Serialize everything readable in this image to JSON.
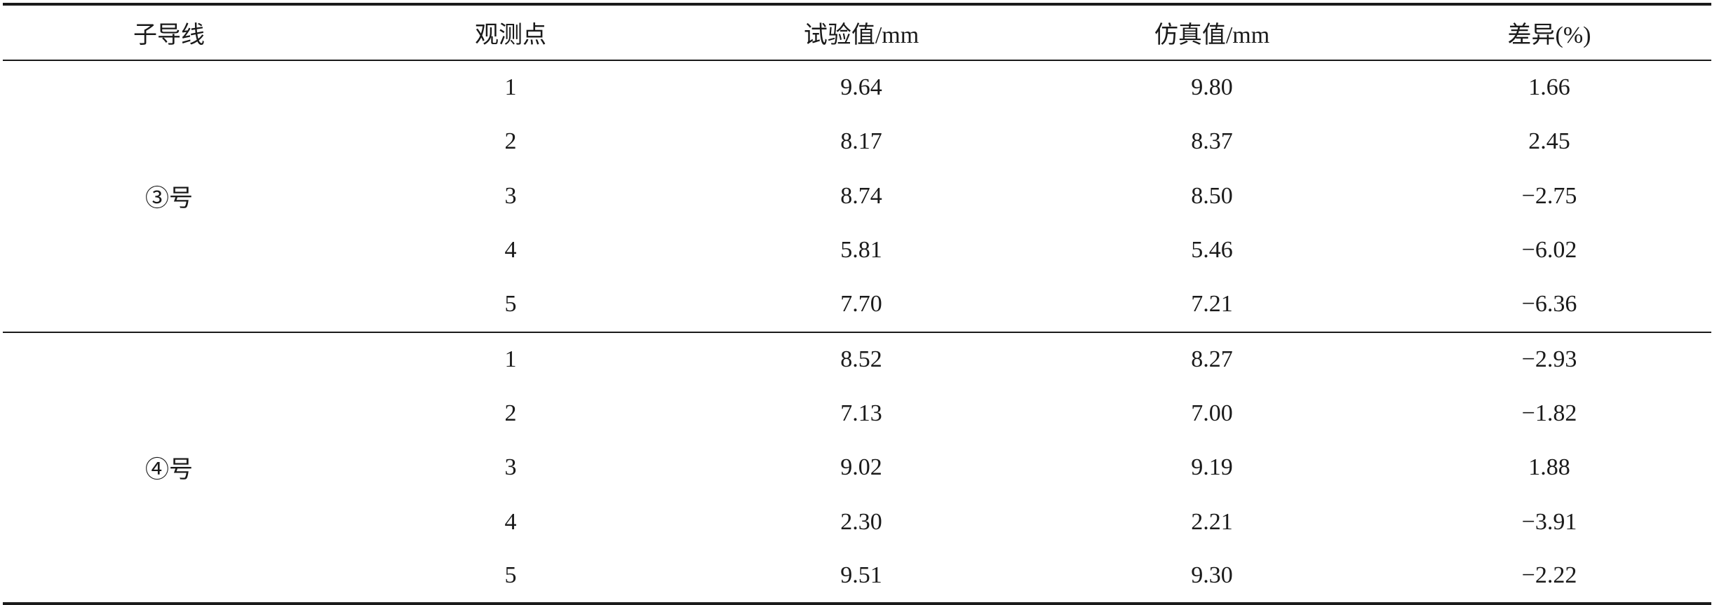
{
  "table": {
    "headers": [
      "子导线",
      "观测点",
      "试验值/mm",
      "仿真值/mm",
      "差异(%)"
    ],
    "groups": [
      {
        "label": "③号",
        "rows": [
          [
            "1",
            "9.64",
            "9.80",
            "1.66"
          ],
          [
            "2",
            "8.17",
            "8.37",
            "2.45"
          ],
          [
            "3",
            "8.74",
            "8.50",
            "−2.75"
          ],
          [
            "4",
            "5.81",
            "5.46",
            "−6.02"
          ],
          [
            "5",
            "7.70",
            "7.21",
            "−6.36"
          ]
        ]
      },
      {
        "label": "④号",
        "rows": [
          [
            "1",
            "8.52",
            "8.27",
            "−2.93"
          ],
          [
            "2",
            "7.13",
            "7.00",
            "−1.82"
          ],
          [
            "3",
            "9.02",
            "9.19",
            "1.88"
          ],
          [
            "4",
            "2.30",
            "2.21",
            "−3.91"
          ],
          [
            "5",
            "9.51",
            "9.30",
            "−2.22"
          ]
        ]
      }
    ]
  }
}
